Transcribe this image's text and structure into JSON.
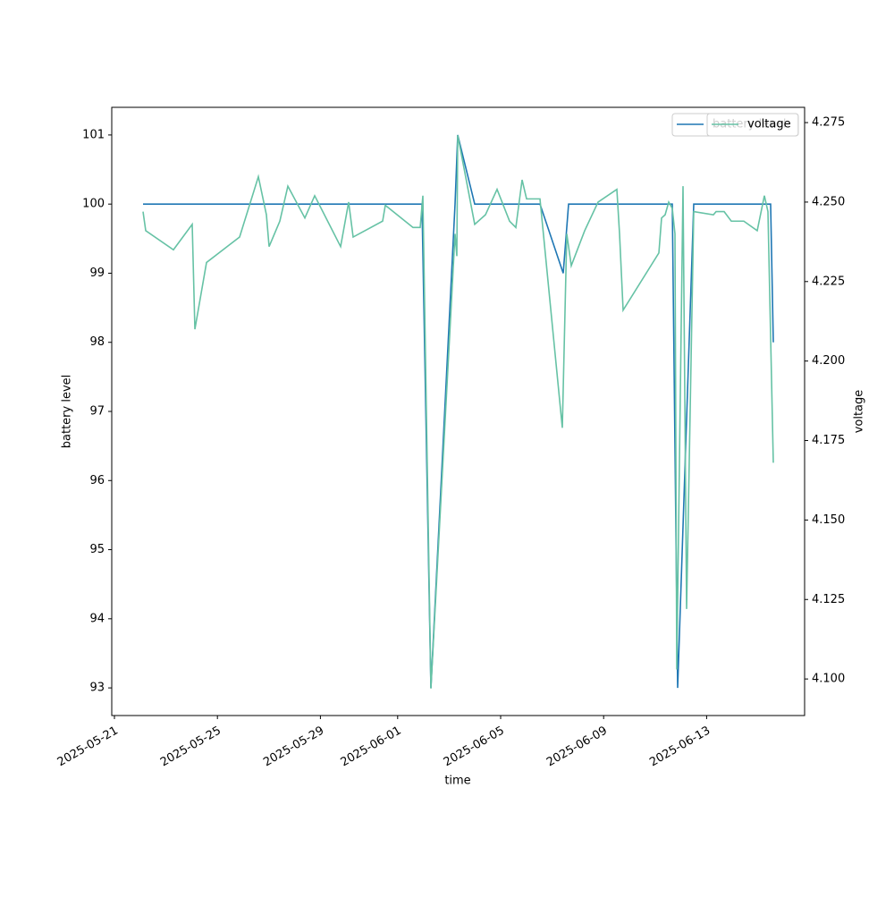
{
  "chart_data": {
    "type": "line",
    "xlabel": "time",
    "ylabel": "battery level",
    "y2label": "voltage",
    "xlim": [
      "2025-05-20T21:30",
      "2025-06-16T19:20"
    ],
    "xticks": [
      "2025-05-21",
      "2025-05-25",
      "2025-05-29",
      "2025-06-01",
      "2025-06-05",
      "2025-06-09",
      "2025-06-13"
    ],
    "ylim": [
      92.6,
      101.4
    ],
    "yticks": [
      93,
      94,
      95,
      96,
      97,
      98,
      99,
      100,
      101
    ],
    "y2lim": [
      4.0885,
      4.2798
    ],
    "y2ticks": [
      {
        "value": 4.1,
        "label": "4.100"
      },
      4.125,
      {
        "value": 4.15,
        "label": "4.150"
      },
      4.175,
      {
        "value": 4.2,
        "label": "4.200"
      },
      4.225,
      {
        "value": 4.25,
        "label": "4.250"
      },
      4.275
    ],
    "grid": false,
    "legend": "upper right",
    "series": [
      {
        "name": "battery level",
        "color": "#1f77b4",
        "axis": "y",
        "x": [
          "2025-05-22T02:40",
          "2025-06-01T22:40",
          "2025-06-02T07:00",
          "2025-06-03T05:30",
          "2025-06-03T08:00",
          "2025-06-03T23:50",
          "2025-06-06T12:40",
          "2025-06-07T10:20",
          "2025-06-07T15:20",
          "2025-06-11T16:00",
          "2025-06-11T21:00",
          "2025-06-12T12:00",
          "2025-06-15T11:40",
          "2025-06-15T14:10"
        ],
        "values": [
          100,
          100,
          93,
          100,
          101,
          100,
          100,
          99,
          100,
          100,
          93,
          100,
          100,
          98
        ]
      },
      {
        "name": "voltage",
        "color": "#66c2a5",
        "axis": "y2",
        "x": [
          "2025-05-22T02:40",
          "2025-05-22T05:10",
          "2025-05-23T07:00",
          "2025-05-24T00:30",
          "2025-05-24T03:00",
          "2025-05-24T13:50",
          "2025-05-25T20:40",
          "2025-05-26T14:10",
          "2025-05-26T21:40",
          "2025-05-27T00:10",
          "2025-05-27T10:10",
          "2025-05-27T17:40",
          "2025-05-28T09:30",
          "2025-05-28T18:40",
          "2025-05-29T18:50",
          "2025-05-30T02:20",
          "2025-05-30T06:30",
          "2025-05-31T10:00",
          "2025-05-31T12:30",
          "2025-06-01T14:20",
          "2025-06-01T21:00",
          "2025-06-01T23:30",
          "2025-06-02T07:00",
          "2025-06-03T05:30",
          "2025-06-03T07:10",
          "2025-06-03T08:00",
          "2025-06-03T23:50",
          "2025-06-04T09:50",
          "2025-06-04T20:40",
          "2025-06-05T08:20",
          "2025-06-05T14:10",
          "2025-06-05T20:00",
          "2025-06-06T00:10",
          "2025-06-06T12:40",
          "2025-06-07T09:30",
          "2025-06-07T13:40",
          "2025-06-07T17:50",
          "2025-06-08T06:20",
          "2025-06-08T18:50",
          "2025-06-09T12:20",
          "2025-06-09T14:50",
          "2025-06-09T18:10",
          "2025-06-11T03:30",
          "2025-06-11T06:00",
          "2025-06-11T09:20",
          "2025-06-11T12:40",
          "2025-06-11T16:00",
          "2025-06-11T18:30",
          "2025-06-11T20:10",
          "2025-06-12T02:00",
          "2025-06-12T05:20",
          "2025-06-12T12:00",
          "2025-06-13T06:20",
          "2025-06-13T08:50",
          "2025-06-13T16:20",
          "2025-06-13T23:00",
          "2025-06-14T10:40",
          "2025-06-14T23:10",
          "2025-06-15T05:50",
          "2025-06-15T09:10",
          "2025-06-15T14:10"
        ],
        "values": [
          4.247,
          4.241,
          4.235,
          4.243,
          4.21,
          4.231,
          4.239,
          4.258,
          4.246,
          4.236,
          4.244,
          4.255,
          4.245,
          4.252,
          4.236,
          4.25,
          4.239,
          4.244,
          4.249,
          4.242,
          4.242,
          4.252,
          4.097,
          4.24,
          4.233,
          4.271,
          4.243,
          4.246,
          4.254,
          4.244,
          4.242,
          4.257,
          4.251,
          4.251,
          4.179,
          4.24,
          4.23,
          4.241,
          4.25,
          4.254,
          4.24,
          4.216,
          4.234,
          4.245,
          4.246,
          4.25,
          4.248,
          4.24,
          4.103,
          4.255,
          4.122,
          4.247,
          4.246,
          4.247,
          4.247,
          4.244,
          4.244,
          4.241,
          4.252,
          4.247,
          4.168
        ]
      }
    ]
  }
}
